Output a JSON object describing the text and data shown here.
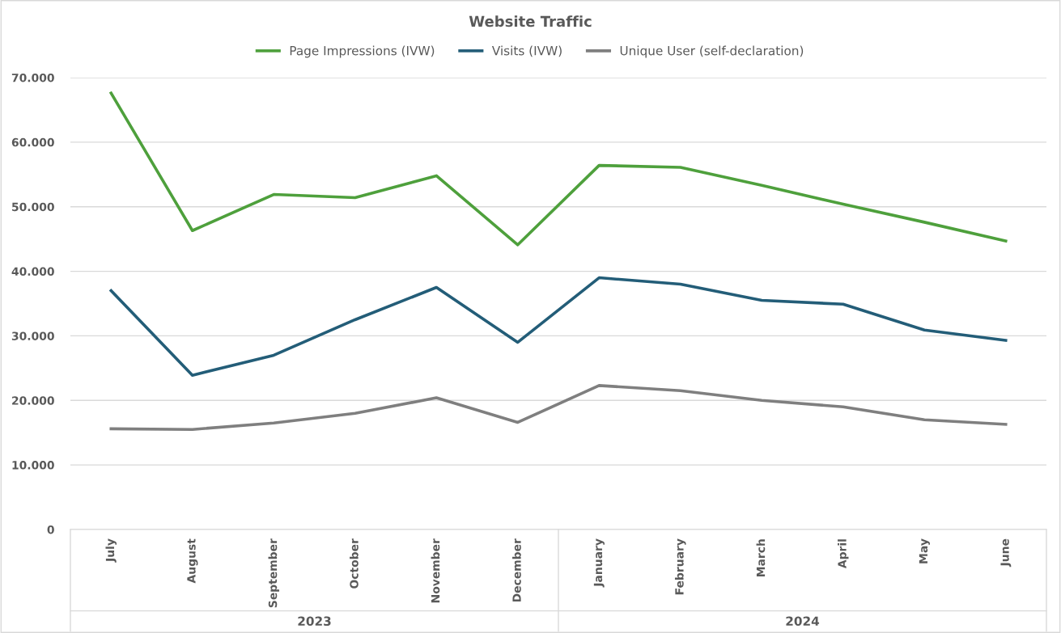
{
  "chart_data": {
    "type": "line",
    "title": "Website Traffic",
    "categories": [
      "July",
      "August",
      "September",
      "October",
      "November",
      "December",
      "January",
      "February",
      "March",
      "April",
      "May",
      "June"
    ],
    "series": [
      {
        "name": "Page Impressions (IVW)",
        "color": "#4ea03c",
        "values": [
          67600,
          46300,
          51900,
          51400,
          54800,
          44100,
          56400,
          56100,
          53300,
          50400,
          47600,
          44700
        ]
      },
      {
        "name": "Visits (IVW)",
        "color": "#235d78",
        "values": [
          37000,
          23900,
          27000,
          32500,
          37500,
          29000,
          39000,
          38000,
          35500,
          34900,
          30900,
          29300
        ]
      },
      {
        "name": "Unique User (self-declaration)",
        "color": "#7f7f7f",
        "values": [
          15600,
          15500,
          16500,
          18000,
          20400,
          16600,
          22300,
          21500,
          20000,
          19000,
          17000,
          16300
        ]
      }
    ],
    "annotations": [
      "2023",
      "2024"
    ],
    "ylim": [
      0,
      70000
    ],
    "yticks": [
      {
        "value": 0,
        "label": "0"
      },
      {
        "value": 10000,
        "label": "10.000"
      },
      {
        "value": 20000,
        "label": "20.000"
      },
      {
        "value": 30000,
        "label": "30.000"
      },
      {
        "value": 40000,
        "label": "40.000"
      },
      {
        "value": 50000,
        "label": "50.000"
      },
      {
        "value": 60000,
        "label": "60.000"
      },
      {
        "value": 70000,
        "label": "70.000"
      }
    ],
    "grid": "y",
    "legend": "top",
    "marker": "none",
    "line_style": "solid"
  }
}
